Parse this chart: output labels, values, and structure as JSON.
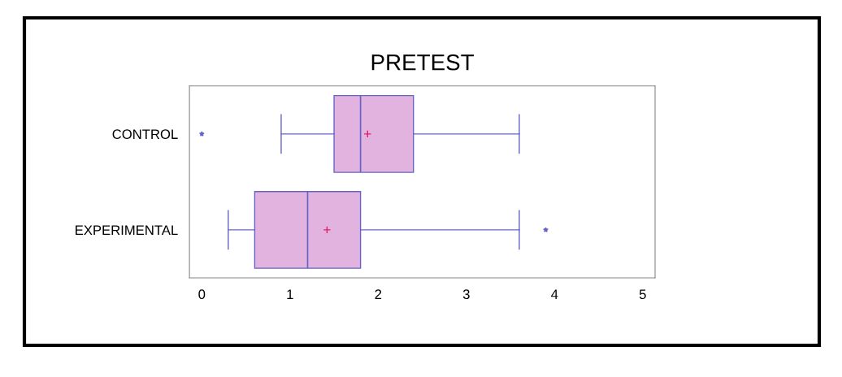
{
  "chart_data": {
    "type": "box",
    "title": "PRETEST",
    "orientation": "horizontal",
    "categories": [
      "CONTROL",
      "EXPERIMENTAL"
    ],
    "boxes": [
      {
        "low": 0.9,
        "q1": 1.5,
        "median": 1.8,
        "q3": 2.4,
        "high": 3.6,
        "mean": 1.88,
        "outliers": [
          0
        ]
      },
      {
        "low": 0.3,
        "q1": 0.6,
        "median": 1.2,
        "q3": 1.8,
        "high": 3.6,
        "mean": 1.42,
        "outliers": [
          3.9
        ]
      }
    ],
    "color": "#e3b3df",
    "xlim": [
      -0.14,
      5.14
    ],
    "xticks": [
      0,
      1,
      2,
      3,
      4,
      5
    ],
    "grid": false
  }
}
